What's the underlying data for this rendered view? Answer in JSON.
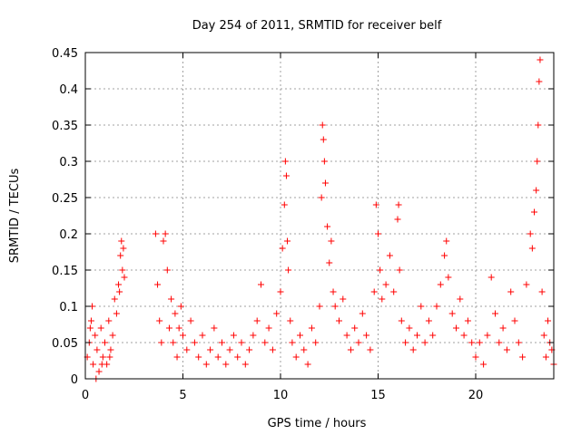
{
  "chart_data": {
    "type": "scatter",
    "title": "Day 254 of 2011, SRMTID for receiver belf",
    "xlabel": "GPS time / hours",
    "ylabel": "SRMTID / TECUs",
    "xlim": [
      0,
      24
    ],
    "ylim": [
      0,
      0.45
    ],
    "x_ticks": [
      0,
      5,
      10,
      15,
      20
    ],
    "y_ticks": [
      0,
      0.05,
      0.1,
      0.15,
      0.2,
      0.25,
      0.3,
      0.35,
      0.4,
      0.45
    ],
    "x_tick_labels": [
      "0",
      "5",
      "10",
      "15",
      "20"
    ],
    "y_tick_labels": [
      "0",
      "0.05",
      "0.1",
      "0.15",
      "0.2",
      "0.25",
      "0.3",
      "0.35",
      "0.4",
      "0.45"
    ],
    "grid": true,
    "marker": "+",
    "color": "#ff0000",
    "series": [
      {
        "name": "SRMTID",
        "points": [
          [
            0.1,
            0.03
          ],
          [
            0.2,
            0.05
          ],
          [
            0.3,
            0.08
          ],
          [
            0.35,
            0.1
          ],
          [
            0.4,
            0.02
          ],
          [
            0.5,
            0.06
          ],
          [
            0.6,
            0.04
          ],
          [
            0.7,
            0.01
          ],
          [
            0.8,
            0.07
          ],
          [
            0.9,
            0.03
          ],
          [
            1.0,
            0.05
          ],
          [
            1.1,
            0.02
          ],
          [
            1.2,
            0.08
          ],
          [
            1.3,
            0.04
          ],
          [
            1.4,
            0.06
          ],
          [
            1.5,
            0.11
          ],
          [
            1.6,
            0.09
          ],
          [
            1.7,
            0.13
          ],
          [
            1.8,
            0.17
          ],
          [
            1.85,
            0.19
          ],
          [
            1.9,
            0.15
          ],
          [
            2.0,
            0.14
          ],
          [
            1.95,
            0.18
          ],
          [
            1.75,
            0.12
          ],
          [
            0.25,
            0.07
          ],
          [
            0.55,
            0.0
          ],
          [
            0.85,
            0.02
          ],
          [
            1.25,
            0.03
          ],
          [
            3.6,
            0.2
          ],
          [
            3.7,
            0.13
          ],
          [
            3.8,
            0.08
          ],
          [
            3.9,
            0.05
          ],
          [
            4.0,
            0.19
          ],
          [
            4.1,
            0.2
          ],
          [
            4.2,
            0.15
          ],
          [
            4.3,
            0.07
          ],
          [
            4.4,
            0.11
          ],
          [
            4.5,
            0.05
          ],
          [
            4.6,
            0.09
          ],
          [
            4.7,
            0.03
          ],
          [
            4.8,
            0.07
          ],
          [
            4.9,
            0.1
          ],
          [
            5.0,
            0.06
          ],
          [
            5.2,
            0.04
          ],
          [
            5.4,
            0.08
          ],
          [
            5.6,
            0.05
          ],
          [
            5.8,
            0.03
          ],
          [
            6.0,
            0.06
          ],
          [
            6.2,
            0.02
          ],
          [
            6.4,
            0.04
          ],
          [
            6.6,
            0.07
          ],
          [
            6.8,
            0.03
          ],
          [
            7.0,
            0.05
          ],
          [
            7.2,
            0.02
          ],
          [
            7.4,
            0.04
          ],
          [
            7.6,
            0.06
          ],
          [
            7.8,
            0.03
          ],
          [
            8.0,
            0.05
          ],
          [
            8.2,
            0.02
          ],
          [
            8.4,
            0.04
          ],
          [
            8.6,
            0.06
          ],
          [
            8.8,
            0.08
          ],
          [
            9.0,
            0.13
          ],
          [
            9.2,
            0.05
          ],
          [
            9.4,
            0.07
          ],
          [
            9.6,
            0.04
          ],
          [
            9.8,
            0.09
          ],
          [
            10.0,
            0.12
          ],
          [
            10.1,
            0.18
          ],
          [
            10.2,
            0.24
          ],
          [
            10.25,
            0.3
          ],
          [
            10.3,
            0.28
          ],
          [
            10.35,
            0.19
          ],
          [
            10.4,
            0.15
          ],
          [
            10.5,
            0.08
          ],
          [
            10.6,
            0.05
          ],
          [
            10.8,
            0.03
          ],
          [
            11.0,
            0.06
          ],
          [
            11.2,
            0.04
          ],
          [
            11.4,
            0.02
          ],
          [
            11.6,
            0.07
          ],
          [
            11.8,
            0.05
          ],
          [
            12.0,
            0.1
          ],
          [
            12.1,
            0.25
          ],
          [
            12.15,
            0.35
          ],
          [
            12.2,
            0.33
          ],
          [
            12.25,
            0.3
          ],
          [
            12.3,
            0.27
          ],
          [
            12.4,
            0.21
          ],
          [
            12.5,
            0.16
          ],
          [
            12.6,
            0.19
          ],
          [
            12.7,
            0.12
          ],
          [
            12.8,
            0.1
          ],
          [
            13.0,
            0.08
          ],
          [
            13.2,
            0.11
          ],
          [
            13.4,
            0.06
          ],
          [
            13.6,
            0.04
          ],
          [
            13.8,
            0.07
          ],
          [
            14.0,
            0.05
          ],
          [
            14.2,
            0.09
          ],
          [
            14.4,
            0.06
          ],
          [
            14.6,
            0.04
          ],
          [
            14.8,
            0.12
          ],
          [
            14.9,
            0.24
          ],
          [
            15.0,
            0.2
          ],
          [
            15.1,
            0.15
          ],
          [
            15.2,
            0.11
          ],
          [
            15.4,
            0.13
          ],
          [
            15.6,
            0.17
          ],
          [
            15.8,
            0.12
          ],
          [
            16.0,
            0.22
          ],
          [
            16.05,
            0.24
          ],
          [
            16.1,
            0.15
          ],
          [
            16.2,
            0.08
          ],
          [
            16.4,
            0.05
          ],
          [
            16.6,
            0.07
          ],
          [
            16.8,
            0.04
          ],
          [
            17.0,
            0.06
          ],
          [
            17.2,
            0.1
          ],
          [
            17.4,
            0.05
          ],
          [
            17.6,
            0.08
          ],
          [
            17.8,
            0.06
          ],
          [
            18.0,
            0.1
          ],
          [
            18.2,
            0.13
          ],
          [
            18.4,
            0.17
          ],
          [
            18.5,
            0.19
          ],
          [
            18.6,
            0.14
          ],
          [
            18.8,
            0.09
          ],
          [
            19.0,
            0.07
          ],
          [
            19.2,
            0.11
          ],
          [
            19.4,
            0.06
          ],
          [
            19.6,
            0.08
          ],
          [
            19.8,
            0.05
          ],
          [
            20.0,
            0.03
          ],
          [
            20.2,
            0.05
          ],
          [
            20.4,
            0.02
          ],
          [
            20.6,
            0.06
          ],
          [
            20.8,
            0.14
          ],
          [
            21.0,
            0.09
          ],
          [
            21.2,
            0.05
          ],
          [
            21.4,
            0.07
          ],
          [
            21.6,
            0.04
          ],
          [
            21.8,
            0.12
          ],
          [
            22.0,
            0.08
          ],
          [
            22.2,
            0.05
          ],
          [
            22.4,
            0.03
          ],
          [
            22.6,
            0.13
          ],
          [
            22.8,
            0.2
          ],
          [
            22.9,
            0.18
          ],
          [
            23.0,
            0.23
          ],
          [
            23.1,
            0.26
          ],
          [
            23.15,
            0.3
          ],
          [
            23.2,
            0.35
          ],
          [
            23.25,
            0.41
          ],
          [
            23.3,
            0.44
          ],
          [
            23.4,
            0.12
          ],
          [
            23.5,
            0.06
          ],
          [
            23.6,
            0.03
          ],
          [
            23.8,
            0.05
          ],
          [
            24.0,
            0.02
          ],
          [
            23.7,
            0.08
          ],
          [
            23.9,
            0.04
          ]
        ]
      }
    ]
  }
}
